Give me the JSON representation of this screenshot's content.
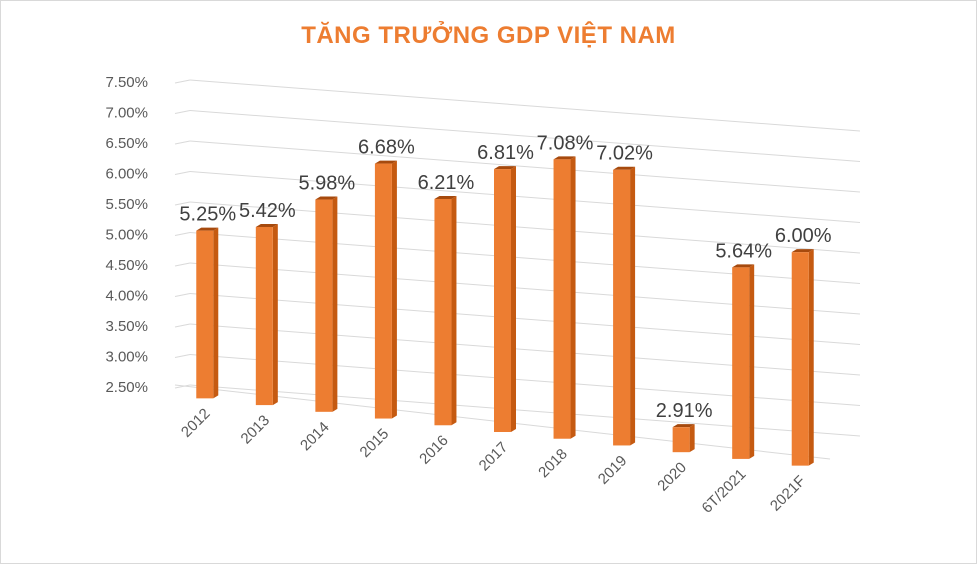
{
  "chart_data": {
    "type": "bar",
    "title": "TĂNG TRƯỞNG GDP VIỆT NAM",
    "xlabel": "",
    "ylabel": "",
    "categories": [
      "2012",
      "2013",
      "2014",
      "2015",
      "2016",
      "2017",
      "2018",
      "2019",
      "2020",
      "6T/2021",
      "2021F"
    ],
    "values": [
      5.25,
      5.42,
      5.98,
      6.68,
      6.21,
      6.81,
      7.08,
      7.02,
      2.91,
      5.64,
      6.0
    ],
    "value_labels": [
      "5.25%",
      "5.42%",
      "5.98%",
      "6.68%",
      "6.21%",
      "6.81%",
      "7.08%",
      "7.02%",
      "2.91%",
      "5.64%",
      "6.00%"
    ],
    "y_ticks": [
      "2.50%",
      "3.00%",
      "3.50%",
      "4.00%",
      "4.50%",
      "5.00%",
      "5.50%",
      "6.00%",
      "6.50%",
      "7.00%",
      "7.50%"
    ],
    "ylim": [
      2.5,
      7.5
    ],
    "grid": true,
    "legend": "none",
    "bar_color": "#ed7d31",
    "bar_side_color": "#c55a11",
    "title_color": "#ed7d31"
  }
}
